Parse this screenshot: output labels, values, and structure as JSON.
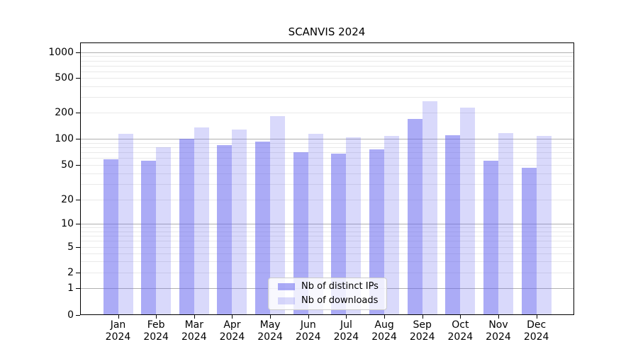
{
  "title": "SCANVIS 2024",
  "colors": {
    "bar_distinct_ips": "rgba(102,102,238,0.55)",
    "bar_downloads": "rgba(102,102,238,0.25)",
    "major_gridline": "#b0b0b0",
    "minor_gridline": "#e9e9e9",
    "axis": "#000000",
    "legend_border": "#cccccc",
    "legend_background": "rgba(255,255,255,0.8)"
  },
  "y_axis": {
    "tick_labels": [
      "0",
      "1",
      "2",
      "5",
      "10",
      "20",
      "50",
      "100",
      "200",
      "500",
      "1000"
    ]
  },
  "x_axis": {
    "year": "2024",
    "months": [
      "Jan",
      "Feb",
      "Mar",
      "Apr",
      "May",
      "Jun",
      "Jul",
      "Aug",
      "Sep",
      "Oct",
      "Nov",
      "Dec"
    ]
  },
  "legend": {
    "items": [
      {
        "label": "Nb of distinct IPs"
      },
      {
        "label": "Nb of downloads"
      }
    ]
  },
  "chart_data": {
    "type": "bar",
    "title": "SCANVIS 2024",
    "categories": [
      "Jan 2024",
      "Feb 2024",
      "Mar 2024",
      "Apr 2024",
      "May 2024",
      "Jun 2024",
      "Jul 2024",
      "Aug 2024",
      "Sep 2024",
      "Oct 2024",
      "Nov 2024",
      "Dec 2024"
    ],
    "series": [
      {
        "name": "Nb of distinct IPs",
        "values": [
          58,
          56,
          100,
          84,
          93,
          70,
          67,
          76,
          170,
          110,
          56,
          46
        ]
      },
      {
        "name": "Nb of downloads",
        "values": [
          114,
          80,
          136,
          127,
          181,
          114,
          103,
          107,
          268,
          228,
          117,
          108
        ]
      }
    ],
    "yscale": "symlog",
    "ylim": [
      0,
      1300
    ],
    "yticks": [
      0,
      1,
      2,
      5,
      10,
      20,
      50,
      100,
      200,
      500,
      1000
    ],
    "grid": "major-and-minor",
    "legend_position": "lower center"
  }
}
